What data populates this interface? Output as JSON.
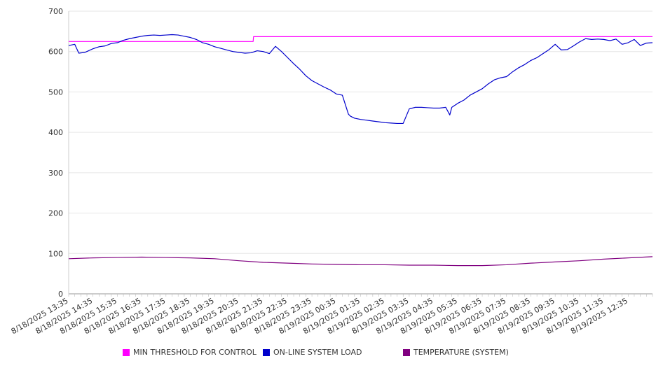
{
  "chart_data": {
    "type": "line",
    "title": "",
    "xlabel": "",
    "ylabel": "",
    "ylim": [
      0,
      700
    ],
    "yticks": [
      "0",
      "100",
      "200",
      "300",
      "400",
      "500",
      "600",
      "700"
    ],
    "grid": true,
    "legend_position": "bottom",
    "x_start": "8/18/2025 13:35",
    "x_end": "8/19/2025 13:35",
    "x_tick_labels": [
      "8/18/2025 13:35",
      "8/18/2025 14:35",
      "8/18/2025 15:35",
      "8/18/2025 16:35",
      "8/18/2025 17:35",
      "8/18/2025 18:35",
      "8/18/2025 19:35",
      "8/18/2025 20:35",
      "8/18/2025 21:35",
      "8/18/2025 22:35",
      "8/18/2025 23:35",
      "8/19/2025 00:35",
      "8/19/2025 01:35",
      "8/19/2025 02:35",
      "8/19/2025 03:35",
      "8/19/2025 04:35",
      "8/19/2025 05:35",
      "8/19/2025 06:35",
      "8/19/2025 07:35",
      "8/19/2025 08:35",
      "8/19/2025 09:35",
      "8/19/2025 10:35",
      "8/19/2025 11:35",
      "8/19/2025 12:35"
    ],
    "series": [
      {
        "name": "MIN THRESHOLD FOR CONTROL",
        "color": "#ff00ff",
        "x": [
          "8/18/2025 13:35",
          "8/18/2025 21:10",
          "8/18/2025 21:11",
          "8/19/2025 13:35"
        ],
        "values": [
          625,
          625,
          637,
          637
        ]
      },
      {
        "name": "ON-LINE SYSTEM LOAD",
        "color": "#0000cc",
        "x": [
          "8/18/2025 13:35",
          "8/18/2025 13:50",
          "8/18/2025 14:00",
          "8/18/2025 14:15",
          "8/18/2025 14:35",
          "8/18/2025 14:50",
          "8/18/2025 15:05",
          "8/18/2025 15:20",
          "8/18/2025 15:35",
          "8/18/2025 15:50",
          "8/18/2025 16:05",
          "8/18/2025 16:20",
          "8/18/2025 16:35",
          "8/18/2025 16:50",
          "8/18/2025 17:05",
          "8/18/2025 17:20",
          "8/18/2025 17:35",
          "8/18/2025 17:50",
          "8/18/2025 18:05",
          "8/18/2025 18:20",
          "8/18/2025 18:35",
          "8/18/2025 18:50",
          "8/18/2025 19:05",
          "8/18/2025 19:20",
          "8/18/2025 19:35",
          "8/18/2025 19:50",
          "8/18/2025 20:05",
          "8/18/2025 20:20",
          "8/18/2025 20:35",
          "8/18/2025 20:50",
          "8/18/2025 21:05",
          "8/18/2025 21:20",
          "8/18/2025 21:35",
          "8/18/2025 21:50",
          "8/18/2025 22:05",
          "8/18/2025 22:20",
          "8/18/2025 22:35",
          "8/18/2025 22:50",
          "8/18/2025 23:05",
          "8/18/2025 23:20",
          "8/18/2025 23:35",
          "8/18/2025 23:50",
          "8/19/2025 00:05",
          "8/19/2025 00:20",
          "8/19/2025 00:35",
          "8/19/2025 00:50",
          "8/19/2025 01:05",
          "8/19/2025 01:10",
          "8/19/2025 01:20",
          "8/19/2025 01:35",
          "8/19/2025 01:50",
          "8/19/2025 02:05",
          "8/19/2025 02:20",
          "8/19/2025 02:35",
          "8/19/2025 02:50",
          "8/19/2025 03:05",
          "8/19/2025 03:20",
          "8/19/2025 03:35",
          "8/19/2025 03:50",
          "8/19/2025 04:05",
          "8/19/2025 04:20",
          "8/19/2025 04:35",
          "8/19/2025 04:50",
          "8/19/2025 05:05",
          "8/19/2025 05:15",
          "8/19/2025 05:20",
          "8/19/2025 05:35",
          "8/19/2025 05:50",
          "8/19/2025 06:05",
          "8/19/2025 06:20",
          "8/19/2025 06:35",
          "8/19/2025 06:50",
          "8/19/2025 07:05",
          "8/19/2025 07:20",
          "8/19/2025 07:35",
          "8/19/2025 07:50",
          "8/19/2025 08:05",
          "8/19/2025 08:20",
          "8/19/2025 08:35",
          "8/19/2025 08:50",
          "8/19/2025 09:05",
          "8/19/2025 09:20",
          "8/19/2025 09:35",
          "8/19/2025 09:50",
          "8/19/2025 10:05",
          "8/19/2025 10:20",
          "8/19/2025 10:35",
          "8/19/2025 10:50",
          "8/19/2025 11:05",
          "8/19/2025 11:20",
          "8/19/2025 11:35",
          "8/19/2025 11:50",
          "8/19/2025 12:05",
          "8/19/2025 12:20",
          "8/19/2025 12:35",
          "8/19/2025 12:50",
          "8/19/2025 13:05",
          "8/19/2025 13:20",
          "8/19/2025 13:35"
        ],
        "values": [
          615,
          618,
          596,
          598,
          607,
          612,
          614,
          620,
          622,
          628,
          632,
          635,
          638,
          640,
          641,
          640,
          641,
          642,
          641,
          638,
          635,
          630,
          622,
          618,
          612,
          608,
          604,
          600,
          598,
          596,
          597,
          602,
          600,
          595,
          613,
          600,
          585,
          570,
          556,
          540,
          528,
          520,
          512,
          505,
          495,
          492,
          445,
          440,
          435,
          432,
          430,
          428,
          426,
          424,
          423,
          422,
          422,
          458,
          462,
          462,
          461,
          460,
          460,
          462,
          443,
          462,
          472,
          480,
          492,
          500,
          508,
          520,
          530,
          535,
          538,
          550,
          560,
          568,
          578,
          585,
          595,
          605,
          618,
          604,
          605,
          614,
          624,
          632,
          630,
          631,
          630,
          627,
          631,
          618,
          622,
          630,
          615,
          621,
          622
        ]
      },
      {
        "name": "TEMPERATURE (SYSTEM)",
        "color": "#800080",
        "x": [
          "8/18/2025 13:35",
          "8/18/2025 14:35",
          "8/18/2025 15:35",
          "8/18/2025 16:35",
          "8/18/2025 17:35",
          "8/18/2025 18:35",
          "8/18/2025 19:35",
          "8/18/2025 20:35",
          "8/18/2025 21:35",
          "8/18/2025 22:35",
          "8/18/2025 23:35",
          "8/19/2025 00:35",
          "8/19/2025 01:35",
          "8/19/2025 02:35",
          "8/19/2025 03:35",
          "8/19/2025 04:35",
          "8/19/2025 05:35",
          "8/19/2025 06:35",
          "8/19/2025 07:35",
          "8/19/2025 08:35",
          "8/19/2025 09:35",
          "8/19/2025 10:35",
          "8/19/2025 11:35",
          "8/19/2025 12:35",
          "8/19/2025 13:35"
        ],
        "values": [
          87,
          89,
          90,
          91,
          90,
          89,
          87,
          82,
          78,
          76,
          74,
          73,
          72,
          72,
          71,
          71,
          70,
          70,
          72,
          76,
          79,
          82,
          86,
          89,
          92
        ]
      }
    ]
  }
}
